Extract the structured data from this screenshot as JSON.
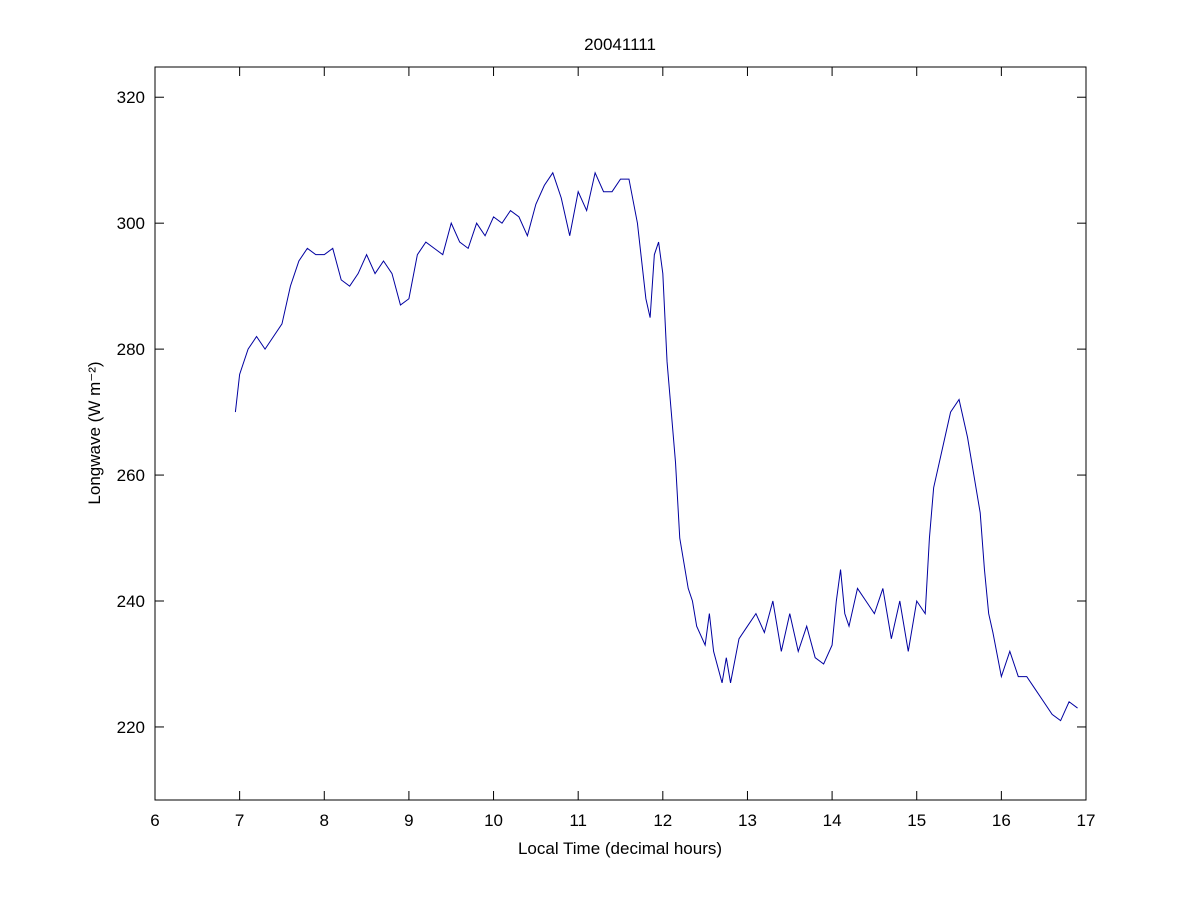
{
  "chart_data": {
    "type": "line",
    "title": "20041111",
    "xlabel": "Local Time (decimal hours)",
    "ylabel": "Longwave (W m⁻²)",
    "x": [
      6.95,
      7.0,
      7.1,
      7.2,
      7.3,
      7.4,
      7.5,
      7.6,
      7.7,
      7.8,
      7.9,
      8.0,
      8.1,
      8.2,
      8.3,
      8.4,
      8.5,
      8.6,
      8.7,
      8.8,
      8.9,
      9.0,
      9.1,
      9.2,
      9.3,
      9.4,
      9.5,
      9.6,
      9.7,
      9.8,
      9.9,
      10.0,
      10.1,
      10.2,
      10.3,
      10.4,
      10.5,
      10.6,
      10.7,
      10.8,
      10.9,
      11.0,
      11.1,
      11.2,
      11.3,
      11.4,
      11.5,
      11.6,
      11.7,
      11.8,
      11.85,
      11.9,
      11.95,
      12.0,
      12.05,
      12.1,
      12.15,
      12.2,
      12.3,
      12.35,
      12.4,
      12.5,
      12.55,
      12.6,
      12.7,
      12.75,
      12.8,
      12.9,
      13.0,
      13.1,
      13.2,
      13.3,
      13.4,
      13.5,
      13.6,
      13.7,
      13.8,
      13.9,
      14.0,
      14.05,
      14.1,
      14.15,
      14.2,
      14.3,
      14.4,
      14.5,
      14.6,
      14.7,
      14.8,
      14.9,
      15.0,
      15.1,
      15.15,
      15.2,
      15.3,
      15.4,
      15.5,
      15.6,
      15.7,
      15.75,
      15.8,
      15.85,
      15.9,
      16.0,
      16.1,
      16.2,
      16.3,
      16.4,
      16.5,
      16.6,
      16.7,
      16.8,
      16.9
    ],
    "series": [
      {
        "name": "Longwave",
        "color": "#0000a0",
        "values": [
          270,
          276,
          280,
          282,
          280,
          282,
          284,
          290,
          294,
          296,
          295,
          295,
          296,
          291,
          290,
          292,
          295,
          292,
          294,
          292,
          287,
          288,
          295,
          297,
          296,
          295,
          300,
          297,
          296,
          300,
          298,
          301,
          300,
          302,
          301,
          298,
          303,
          306,
          308,
          304,
          298,
          305,
          302,
          308,
          305,
          305,
          307,
          307,
          300,
          288,
          285,
          295,
          297,
          292,
          278,
          270,
          262,
          250,
          242,
          240,
          236,
          233,
          238,
          232,
          227,
          231,
          227,
          234,
          236,
          238,
          235,
          240,
          232,
          238,
          232,
          236,
          231,
          230,
          233,
          240,
          245,
          238,
          236,
          242,
          240,
          238,
          242,
          234,
          240,
          232,
          240,
          238,
          250,
          258,
          264,
          270,
          272,
          266,
          258,
          254,
          245,
          238,
          235,
          228,
          232,
          228,
          228,
          226,
          224,
          222,
          221,
          224,
          223
        ]
      }
    ],
    "xlim": [
      6,
      17
    ],
    "ylim": [
      208.4,
      324.8
    ],
    "xticks": [
      6,
      7,
      8,
      9,
      10,
      11,
      12,
      13,
      14,
      15,
      16,
      17
    ],
    "yticks": [
      220,
      240,
      260,
      280,
      300,
      320
    ]
  }
}
